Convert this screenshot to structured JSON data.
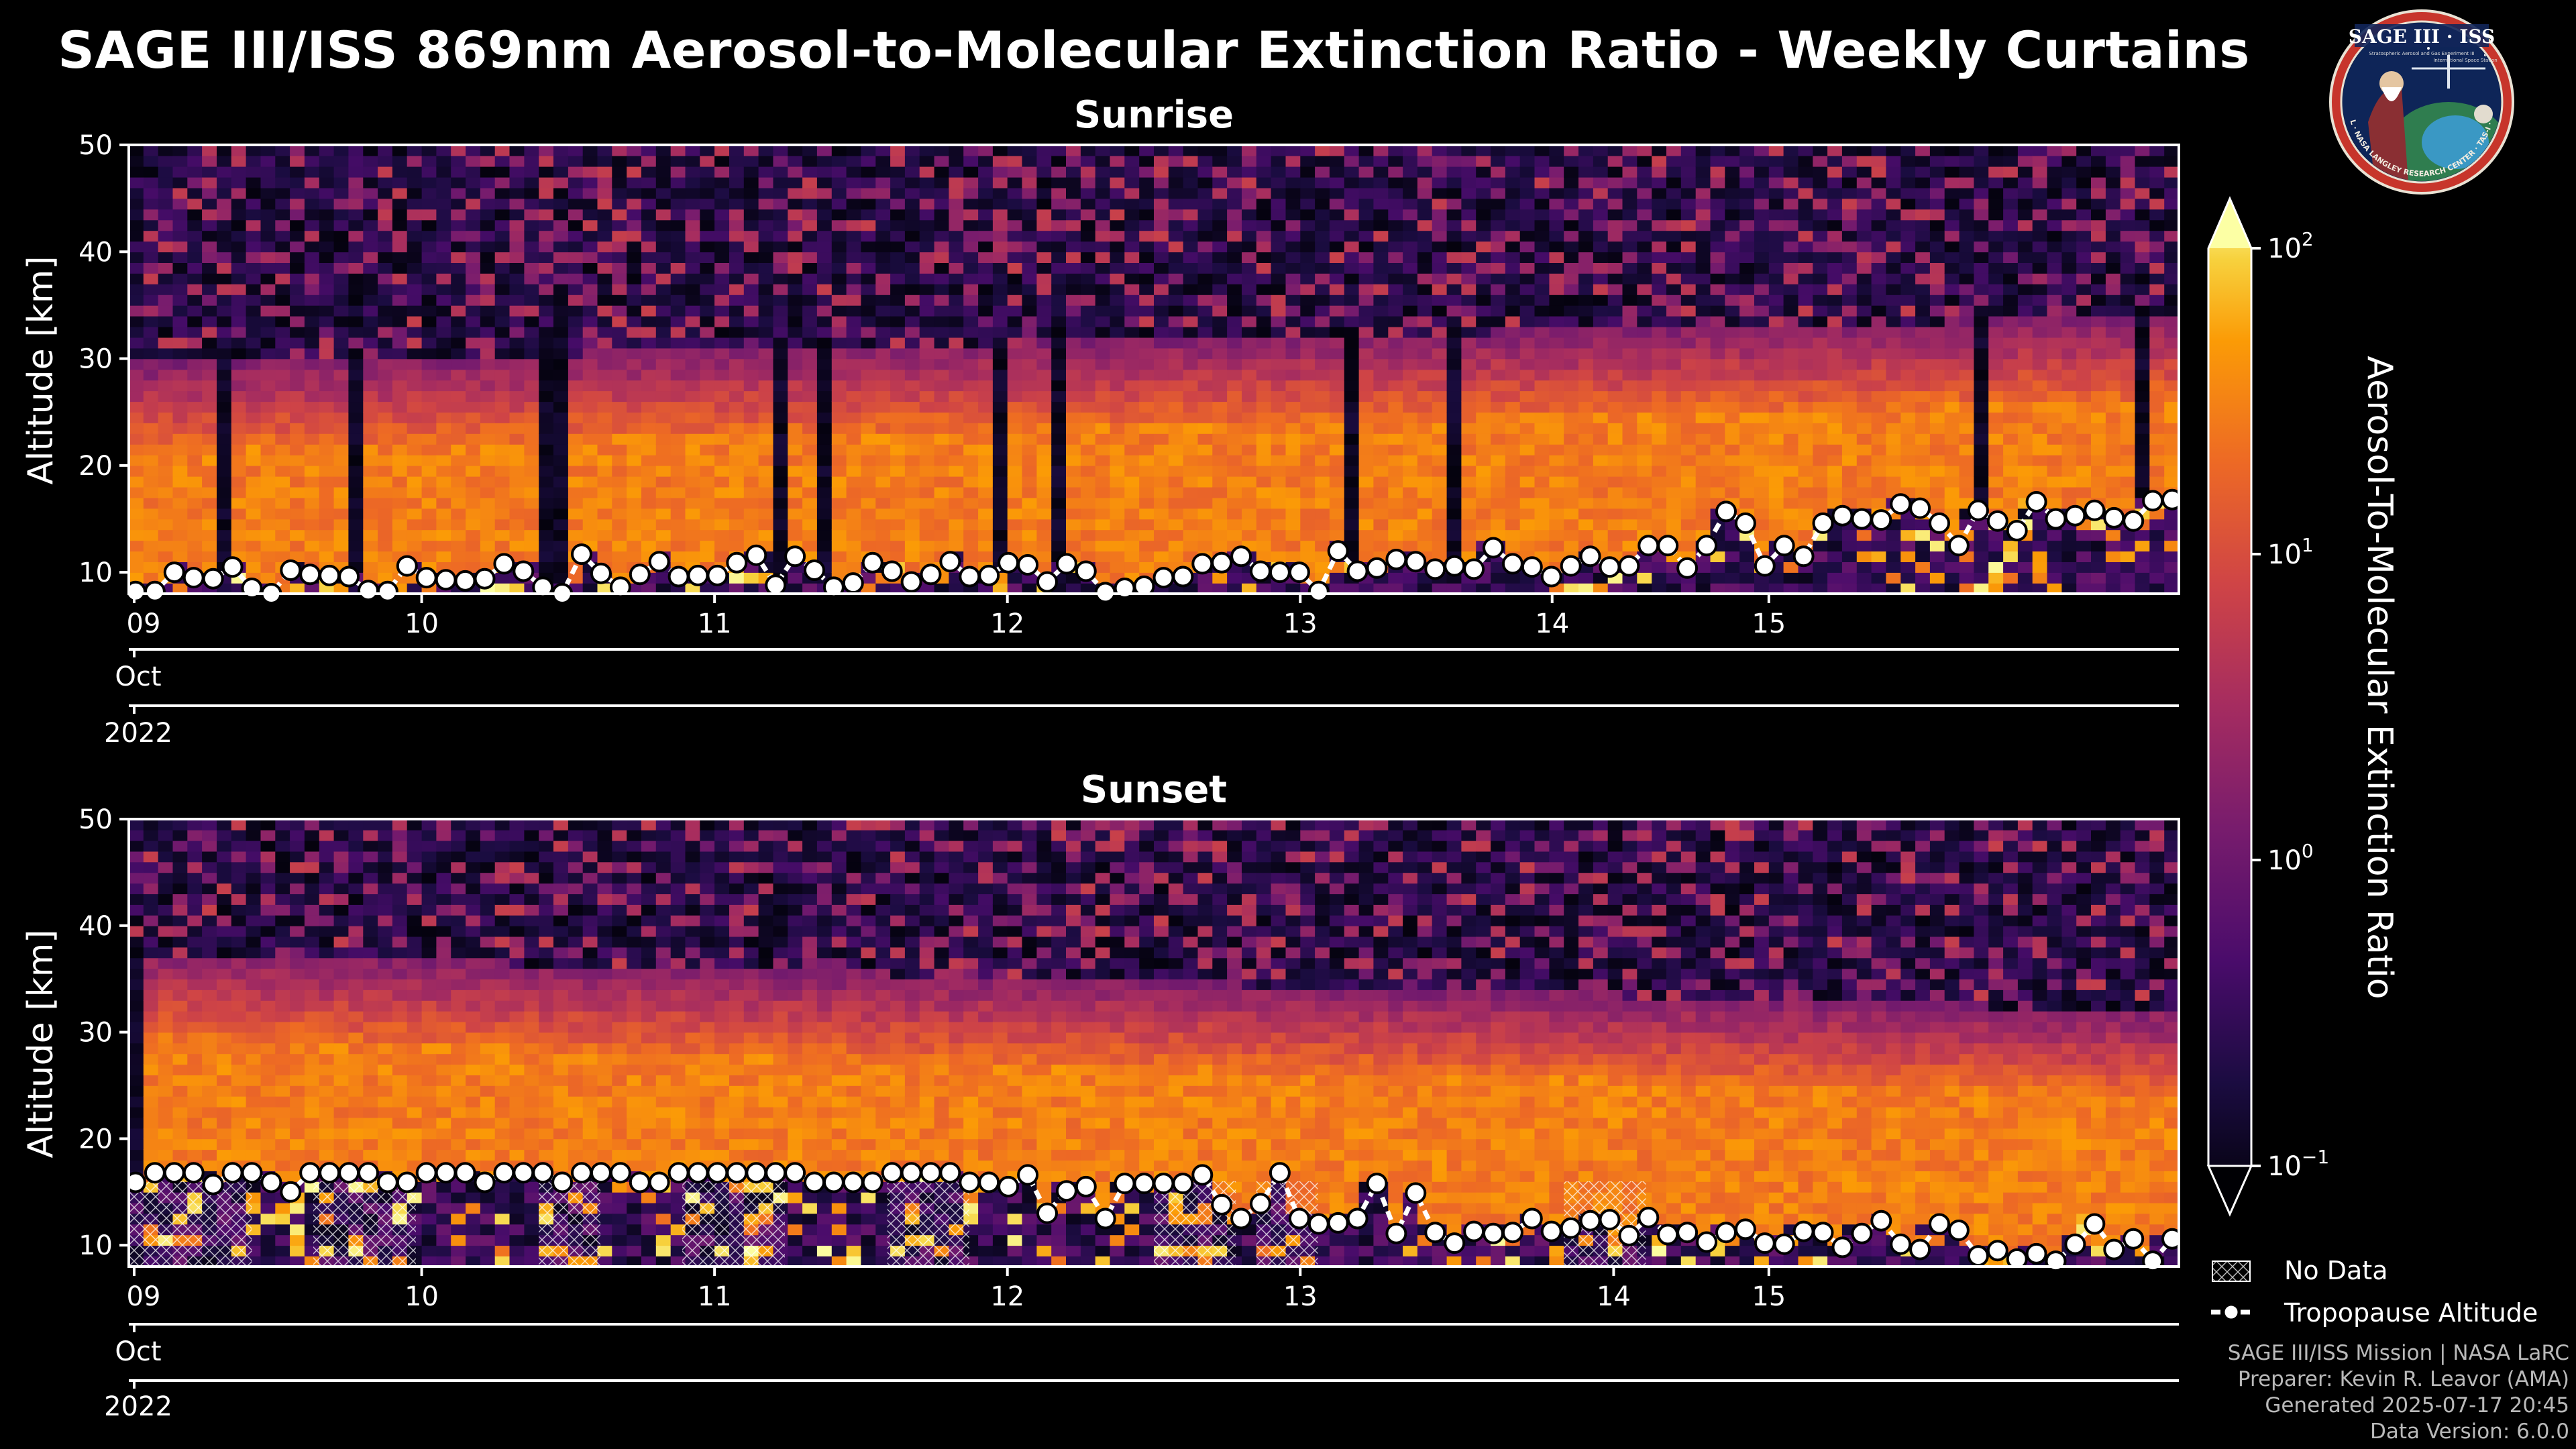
{
  "title": "SAGE III/ISS 869nm Aerosol-to-Molecular Extinction Ratio - Weekly Curtains",
  "logo": {
    "text": "SAGE III · ISS",
    "sub": "Stratospheric Aerosol and Gas Experiment III",
    "ring": "BALL · NASA LANGLEY RESEARCH CENTER · TAS-I · ESA",
    "station": "International Space Station"
  },
  "credits": {
    "line1": "SAGE III/ISS Mission | NASA LaRC",
    "line2": "Preparer: Kevin R. Leavor (AMA)",
    "line3": "Generated 2025-07-17 20:45",
    "line4": "Data Version: 6.0.0"
  },
  "legend": {
    "no_data": "No Data",
    "tropopause": "Tropopause Altitude"
  },
  "colors": {
    "background": "#000000",
    "axis": "#ffffff",
    "marker_fill": "#ffffff",
    "marker_edge": "#000000"
  },
  "chart_data": [
    {
      "type": "heatmap",
      "title": "Sunrise",
      "ylabel": "Altitude [km]",
      "ylim": [
        8,
        50
      ],
      "yticks": [
        "10",
        "20",
        "30",
        "40",
        "50"
      ],
      "xlim_days": [
        9,
        16
      ],
      "xticks": [
        "09",
        "10",
        "11",
        "12",
        "13",
        "14",
        "15"
      ],
      "month_label": "Oct",
      "year_label": "2022",
      "tick_day_positions": [
        9.0,
        10.0,
        11.0,
        12.0,
        13.0,
        13.86,
        14.6
      ],
      "layer": {
        "top_start_km": 22,
        "top_end_km": 26.5
      },
      "tropopause_km": [
        8.2,
        8.2,
        10,
        9.5,
        9.4,
        10.5,
        8.5,
        8.0,
        10.2,
        9.8,
        9.7,
        9.6,
        8.3,
        8.2,
        10.6,
        9.5,
        9.3,
        9.2,
        9.4,
        10.8,
        10.1,
        8.6,
        8.0,
        11.7,
        9.9,
        8.6,
        9.8,
        11.0,
        9.6,
        9.7,
        9.7,
        10.9,
        11.6,
        8.8,
        11.5,
        10.2,
        8.6,
        9.0,
        10.9,
        10.1,
        9.1,
        9.8,
        11.0,
        9.6,
        9.7,
        10.9,
        10.7,
        9.1,
        10.8,
        10.1,
        8.1,
        8.5,
        8.7,
        9.5,
        9.6,
        10.8,
        10.9,
        11.5,
        10.1,
        10.0,
        10.0,
        8.2,
        12.0,
        10.1,
        10.4,
        11.2,
        11.0,
        10.3,
        10.6,
        10.3,
        12.3,
        10.8,
        10.5,
        9.6,
        10.6,
        11.5,
        10.5,
        10.6,
        12.5,
        12.5,
        10.4,
        12.5,
        15.7,
        14.6,
        10.6,
        12.5,
        11.5,
        14.6,
        15.3,
        15.0,
        14.9,
        16.4,
        16.0,
        14.6,
        12.5,
        15.8,
        14.8,
        13.9,
        16.6,
        15.0,
        15.3,
        15.8,
        15.1,
        14.8,
        16.7,
        16.8
      ]
    },
    {
      "type": "heatmap",
      "title": "Sunset",
      "ylabel": "Altitude [km]",
      "ylim": [
        8,
        50
      ],
      "yticks": [
        "10",
        "20",
        "30",
        "40",
        "50"
      ],
      "xlim_days": [
        9,
        16
      ],
      "xticks": [
        "09",
        "10",
        "11",
        "12",
        "13",
        "14",
        "15"
      ],
      "month_label": "Oct",
      "year_label": "2022",
      "tick_day_positions": [
        9.0,
        10.0,
        11.0,
        12.0,
        13.0,
        14.07,
        14.6
      ],
      "layer": {
        "top_start_km": 30,
        "top_end_km": 24.5
      },
      "tropopause_km": [
        15.9,
        16.8,
        16.8,
        16.8,
        15.7,
        16.8,
        16.8,
        15.9,
        15.0,
        16.8,
        16.8,
        16.8,
        16.8,
        15.9,
        15.9,
        16.8,
        16.8,
        16.8,
        15.9,
        16.8,
        16.8,
        16.8,
        15.9,
        16.8,
        16.8,
        16.8,
        15.9,
        15.9,
        16.8,
        16.8,
        16.8,
        16.8,
        16.8,
        16.8,
        16.8,
        15.9,
        15.9,
        15.9,
        15.9,
        16.8,
        16.8,
        16.8,
        16.8,
        15.9,
        15.9,
        15.5,
        16.6,
        13.0,
        15.1,
        15.5,
        12.5,
        15.8,
        15.8,
        15.8,
        15.8,
        16.6,
        13.8,
        12.5,
        13.9,
        16.8,
        12.5,
        12.0,
        12.1,
        12.5,
        15.8,
        11.1,
        14.9,
        11.2,
        10.2,
        11.3,
        11.1,
        11.2,
        12.5,
        11.3,
        11.6,
        12.3,
        12.4,
        10.9,
        12.6,
        11.0,
        11.2,
        10.3,
        11.2,
        11.5,
        10.2,
        10.1,
        11.3,
        11.2,
        9.8,
        11.1,
        12.3,
        10.1,
        9.6,
        12.0,
        11.4,
        9.0,
        9.5,
        8.7,
        9.2,
        8.5,
        10.1,
        12.0,
        9.6,
        10.6,
        8.5,
        10.6
      ]
    }
  ],
  "colorbar": {
    "label": "Aerosol-To-Molecular Extinction Ratio",
    "scale": "log",
    "ticks": [
      {
        "base": "10",
        "exp": "2",
        "value": 100
      },
      {
        "base": "10",
        "exp": "1",
        "value": 10
      },
      {
        "base": "10",
        "exp": "0",
        "value": 1
      },
      {
        "base": "10",
        "exp": "−1",
        "value": 0.1
      }
    ],
    "colormap": "inferno"
  }
}
